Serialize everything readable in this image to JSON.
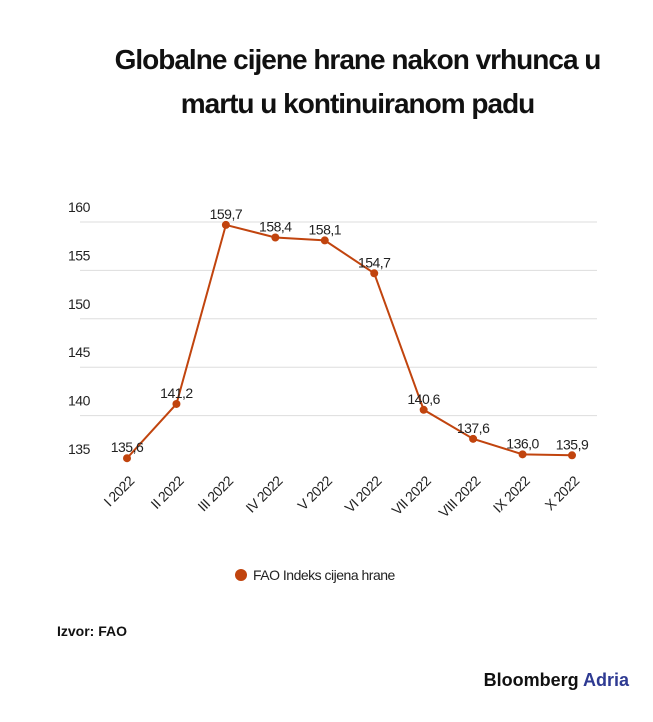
{
  "chart_data": {
    "type": "line",
    "title": "Globalne cijene hrane nakon vrhunca u martu u kontinuiranom padu",
    "categories": [
      "I 2022",
      "II 2022",
      "III 2022",
      "IV 2022",
      "V 2022",
      "VI 2022",
      "VII 2022",
      "VIII 2022",
      "IX 2022",
      "X 2022"
    ],
    "series": [
      {
        "name": "FAO Indeks cijena hrane",
        "color": "#c1440e",
        "values": [
          135.6,
          141.2,
          159.7,
          158.4,
          158.1,
          154.7,
          140.6,
          137.6,
          136.0,
          135.9
        ],
        "value_labels": [
          "135,6",
          "141,2",
          "159,7",
          "158,4",
          "158,1",
          "154,7",
          "140,6",
          "137,6",
          "136,0",
          "135,9"
        ]
      }
    ],
    "ylim": [
      135,
      160
    ],
    "yticks": [
      135,
      140,
      145,
      150,
      155,
      160
    ],
    "grid": true,
    "legend": "bottom",
    "source": "Izvor: FAO"
  },
  "brand": {
    "name": "Bloomberg",
    "suffix": "Adria"
  }
}
